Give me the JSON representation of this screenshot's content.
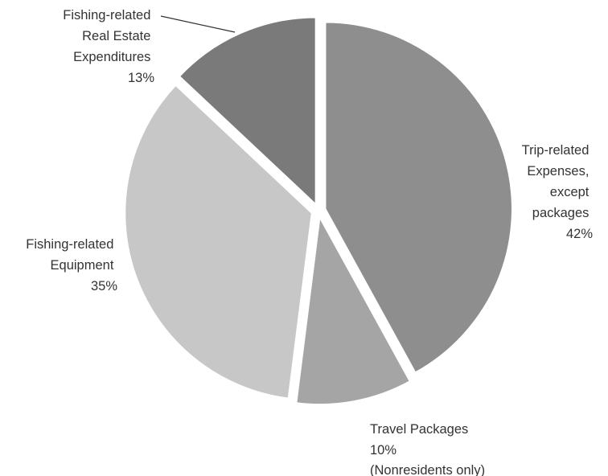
{
  "chart_data": {
    "type": "pie",
    "title": "",
    "slices": [
      {
        "label_lines": [
          "Trip-related",
          "Expenses,",
          "except",
          "packages"
        ],
        "value": 42,
        "value_label": "42%",
        "color": "#8e8e8e"
      },
      {
        "label_lines": [
          "Travel Packages"
        ],
        "value": 10,
        "value_label": "10%",
        "note": "(Nonresidents only)",
        "color": "#a5a5a5"
      },
      {
        "label_lines": [
          "Fishing-related",
          "Equipment"
        ],
        "value": 35,
        "value_label": "35%",
        "color": "#c7c7c7"
      },
      {
        "label_lines": [
          "Fishing-related",
          "Real Estate",
          "Expenditures"
        ],
        "value": 13,
        "value_label": "13%",
        "color": "#7a7a7a"
      }
    ],
    "start_angle_deg": 0,
    "direction": "clockwise",
    "exploded": true
  }
}
